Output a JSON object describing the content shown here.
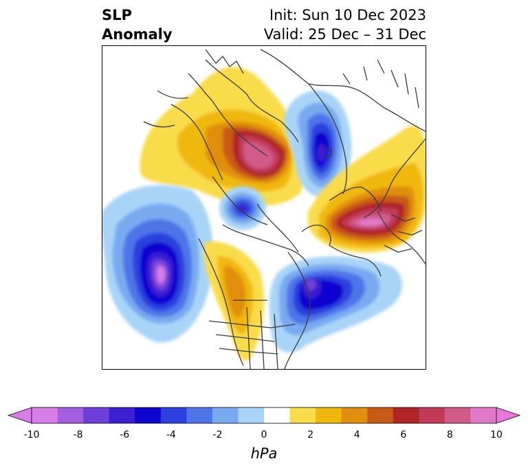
{
  "title": {
    "left_line1": "SLP",
    "left_line2": "Anomaly",
    "right_line1": "Init: Sun 10 Dec 2023",
    "right_line2": "Valid: 25 Dec – 31 Dec"
  },
  "colorbar": {
    "unit": "hPa",
    "ticks": [
      "-10",
      "-8",
      "-6",
      "-4",
      "-2",
      "0",
      "2",
      "4",
      "6",
      "8",
      "10"
    ],
    "colors": [
      "#d97ee8",
      "#a45fe0",
      "#6e3fd8",
      "#3b1fd0",
      "#0a06d0",
      "#2b40de",
      "#4e74e8",
      "#78aaf0",
      "#a8d4f8",
      "#ffffff",
      "#f9dc4a",
      "#f0b80e",
      "#e08f10",
      "#c85a18",
      "#b02428",
      "#c03a58",
      "#d05a88",
      "#e07ac8"
    ],
    "extend_low_color": "#d97ee8",
    "extend_high_color": "#e878d8"
  },
  "map": {
    "projection": "north polar stereographic",
    "anomaly_centers": [
      {
        "region": "North Pacific / Aleutians",
        "sign": "negative",
        "peak_hpa": -10
      },
      {
        "region": "Hudson Bay / Labrador",
        "sign": "negative",
        "peak_hpa": -7
      },
      {
        "region": "Bering Strait",
        "sign": "negative",
        "peak_hpa": -5
      },
      {
        "region": "Central Siberia",
        "sign": "negative",
        "peak_hpa": -6
      },
      {
        "region": "Western Siberia / Urals",
        "sign": "positive",
        "peak_hpa": 8
      },
      {
        "region": "East Asia / Mongolia",
        "sign": "positive",
        "peak_hpa": 9
      },
      {
        "region": "Western North America",
        "sign": "positive",
        "peak_hpa": 3
      },
      {
        "region": "Europe",
        "sign": "positive",
        "peak_hpa": 3
      }
    ]
  }
}
